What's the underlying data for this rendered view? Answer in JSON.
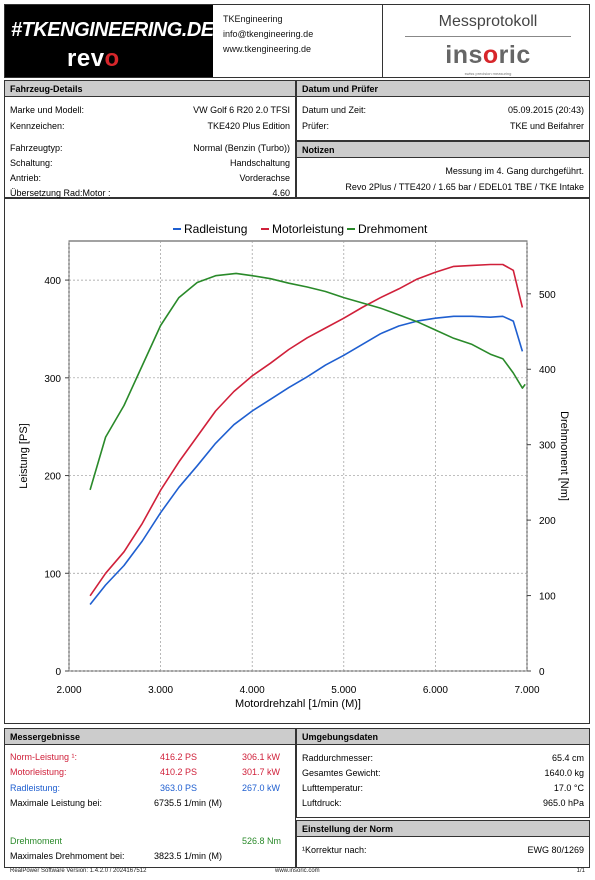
{
  "header": {
    "brand_main": "#TKENGINEERING.DE",
    "brand_sub_prefix": "rev",
    "brand_sub_accent": "o",
    "company": "TKEngineering",
    "email": "info@tkengineering.de",
    "website": "www.tkengineering.de",
    "report_title": "Messprotokoll",
    "logo_pre": "ins",
    "logo_accent": "o",
    "logo_post": "ric",
    "logo_tagline": "swiss precision measuring"
  },
  "vehicle": {
    "title": "Fahrzeug-Details",
    "rows": [
      {
        "label": "Marke und Modell:",
        "value": "VW Golf 6 R20 2.0 TFSI"
      },
      {
        "label": "Kennzeichen:",
        "value": "TKE420 Plus Edition"
      },
      {
        "label": "Fahrzeugtyp:",
        "value": "Normal (Benzin (Turbo))"
      },
      {
        "label": "Schaltung:",
        "value": "Handschaltung"
      },
      {
        "label": "Antrieb:",
        "value": "Vorderachse"
      },
      {
        "label": "Übersetzung Rad:Motor :",
        "value": "4.60"
      }
    ]
  },
  "date_tester": {
    "title": "Datum und Prüfer",
    "rows": [
      {
        "label": "Datum und Zeit:",
        "value": "05.09.2015 (20:43)"
      },
      {
        "label": "Prüfer:",
        "value": "TKE und Beifahrer"
      }
    ]
  },
  "notes": {
    "title": "Notizen",
    "line1": "Messung im 4. Gang durchgeführt.",
    "line2": "Revo 2Plus / TTE420 / 1.65 bar / EDEL01 TBE / TKE Intake"
  },
  "chart_data": {
    "type": "line",
    "xlabel": "Motordrehzahl [1/min (M)]",
    "ylabel": "Leistung [PS]",
    "y2label": "Drehmoment [Nm]",
    "xlim": [
      2000,
      7000
    ],
    "ylim": [
      0,
      440
    ],
    "y2lim": [
      0,
      570
    ],
    "x_ticks": [
      "2.000",
      "3.000",
      "4.000",
      "5.000",
      "6.000",
      "7.000"
    ],
    "y_ticks": [
      "0",
      "100",
      "200",
      "300",
      "400"
    ],
    "y2_ticks": [
      "0",
      "100",
      "200",
      "300",
      "400",
      "500"
    ],
    "legend_position": "top-center",
    "series": [
      {
        "name": "Radleistung",
        "axis": "left",
        "color": "#1f5fd0",
        "points": [
          [
            2230,
            68
          ],
          [
            2400,
            88
          ],
          [
            2600,
            108
          ],
          [
            2800,
            133
          ],
          [
            3000,
            162
          ],
          [
            3200,
            188
          ],
          [
            3400,
            210
          ],
          [
            3600,
            233
          ],
          [
            3800,
            252
          ],
          [
            4000,
            266
          ],
          [
            4200,
            278
          ],
          [
            4400,
            290
          ],
          [
            4600,
            301
          ],
          [
            4800,
            313
          ],
          [
            5000,
            323
          ],
          [
            5200,
            334
          ],
          [
            5400,
            345
          ],
          [
            5600,
            353
          ],
          [
            5800,
            358
          ],
          [
            6000,
            361
          ],
          [
            6200,
            363
          ],
          [
            6400,
            363
          ],
          [
            6600,
            362
          ],
          [
            6736,
            363
          ],
          [
            6850,
            358
          ],
          [
            6950,
            327
          ]
        ]
      },
      {
        "name": "Motorleistung",
        "axis": "left",
        "color": "#d0203a",
        "points": [
          [
            2230,
            77
          ],
          [
            2400,
            100
          ],
          [
            2600,
            122
          ],
          [
            2800,
            151
          ],
          [
            3000,
            185
          ],
          [
            3200,
            214
          ],
          [
            3400,
            240
          ],
          [
            3600,
            266
          ],
          [
            3800,
            286
          ],
          [
            4000,
            302
          ],
          [
            4200,
            315
          ],
          [
            4400,
            329
          ],
          [
            4600,
            341
          ],
          [
            4800,
            351
          ],
          [
            5000,
            361
          ],
          [
            5200,
            372
          ],
          [
            5400,
            382
          ],
          [
            5600,
            391
          ],
          [
            5800,
            401
          ],
          [
            6000,
            408
          ],
          [
            6200,
            414
          ],
          [
            6400,
            415
          ],
          [
            6600,
            416
          ],
          [
            6736,
            416
          ],
          [
            6850,
            410
          ],
          [
            6950,
            372
          ]
        ]
      },
      {
        "name": "Drehmoment",
        "axis": "right",
        "color": "#2a8a2a",
        "points": [
          [
            2230,
            240
          ],
          [
            2400,
            310
          ],
          [
            2600,
            352
          ],
          [
            2800,
            405
          ],
          [
            3000,
            458
          ],
          [
            3200,
            495
          ],
          [
            3400,
            515
          ],
          [
            3600,
            524
          ],
          [
            3824,
            527
          ],
          [
            4000,
            524
          ],
          [
            4200,
            520
          ],
          [
            4400,
            514
          ],
          [
            4600,
            509
          ],
          [
            4800,
            503
          ],
          [
            5000,
            495
          ],
          [
            5200,
            488
          ],
          [
            5400,
            481
          ],
          [
            5600,
            472
          ],
          [
            5800,
            463
          ],
          [
            6000,
            452
          ],
          [
            6200,
            441
          ],
          [
            6400,
            433
          ],
          [
            6600,
            420
          ],
          [
            6736,
            414
          ],
          [
            6850,
            395
          ],
          [
            6950,
            375
          ],
          [
            6980,
            380
          ]
        ]
      }
    ]
  },
  "results": {
    "title": "Messergebnisse",
    "rows": [
      {
        "label": "Norm-Leistung ¹:",
        "ps": "416.2 PS",
        "kw": "306.1 kW",
        "color": "#d0203a"
      },
      {
        "label": "Motorleistung:",
        "ps": "410.2 PS",
        "kw": "301.7 kW",
        "color": "#d0203a"
      },
      {
        "label": "Radleistung:",
        "ps": "363.0 PS",
        "kw": "267.0 kW",
        "color": "#1f5fd0"
      }
    ],
    "max_power_label": "Maximale Leistung bei:",
    "max_power_value": "6735.5 1/min (M)",
    "torque_label": "Drehmoment",
    "torque_value": "526.8 Nm",
    "torque_color": "#2a8a2a",
    "max_torque_label": "Maximales Drehmoment bei:",
    "max_torque_value": "3823.5 1/min (M)"
  },
  "environment": {
    "title": "Umgebungsdaten",
    "rows": [
      {
        "label": "Raddurchmesser:",
        "value": "65.4 cm"
      },
      {
        "label": "Gesamtes Gewicht:",
        "value": "1640.0 kg"
      },
      {
        "label": "Lufttemperatur:",
        "value": "17.0 °C"
      },
      {
        "label": "Luftdruck:",
        "value": "965.0 hPa"
      }
    ]
  },
  "norm": {
    "title": "Einstellung der Norm",
    "label": "¹Korrektur nach:",
    "value": "EWG 80/1269"
  },
  "footer": {
    "software": "RealPower Software Version: 1.4.2.0 / 2024167512",
    "website": "www.insoric.com",
    "page": "1/1"
  }
}
